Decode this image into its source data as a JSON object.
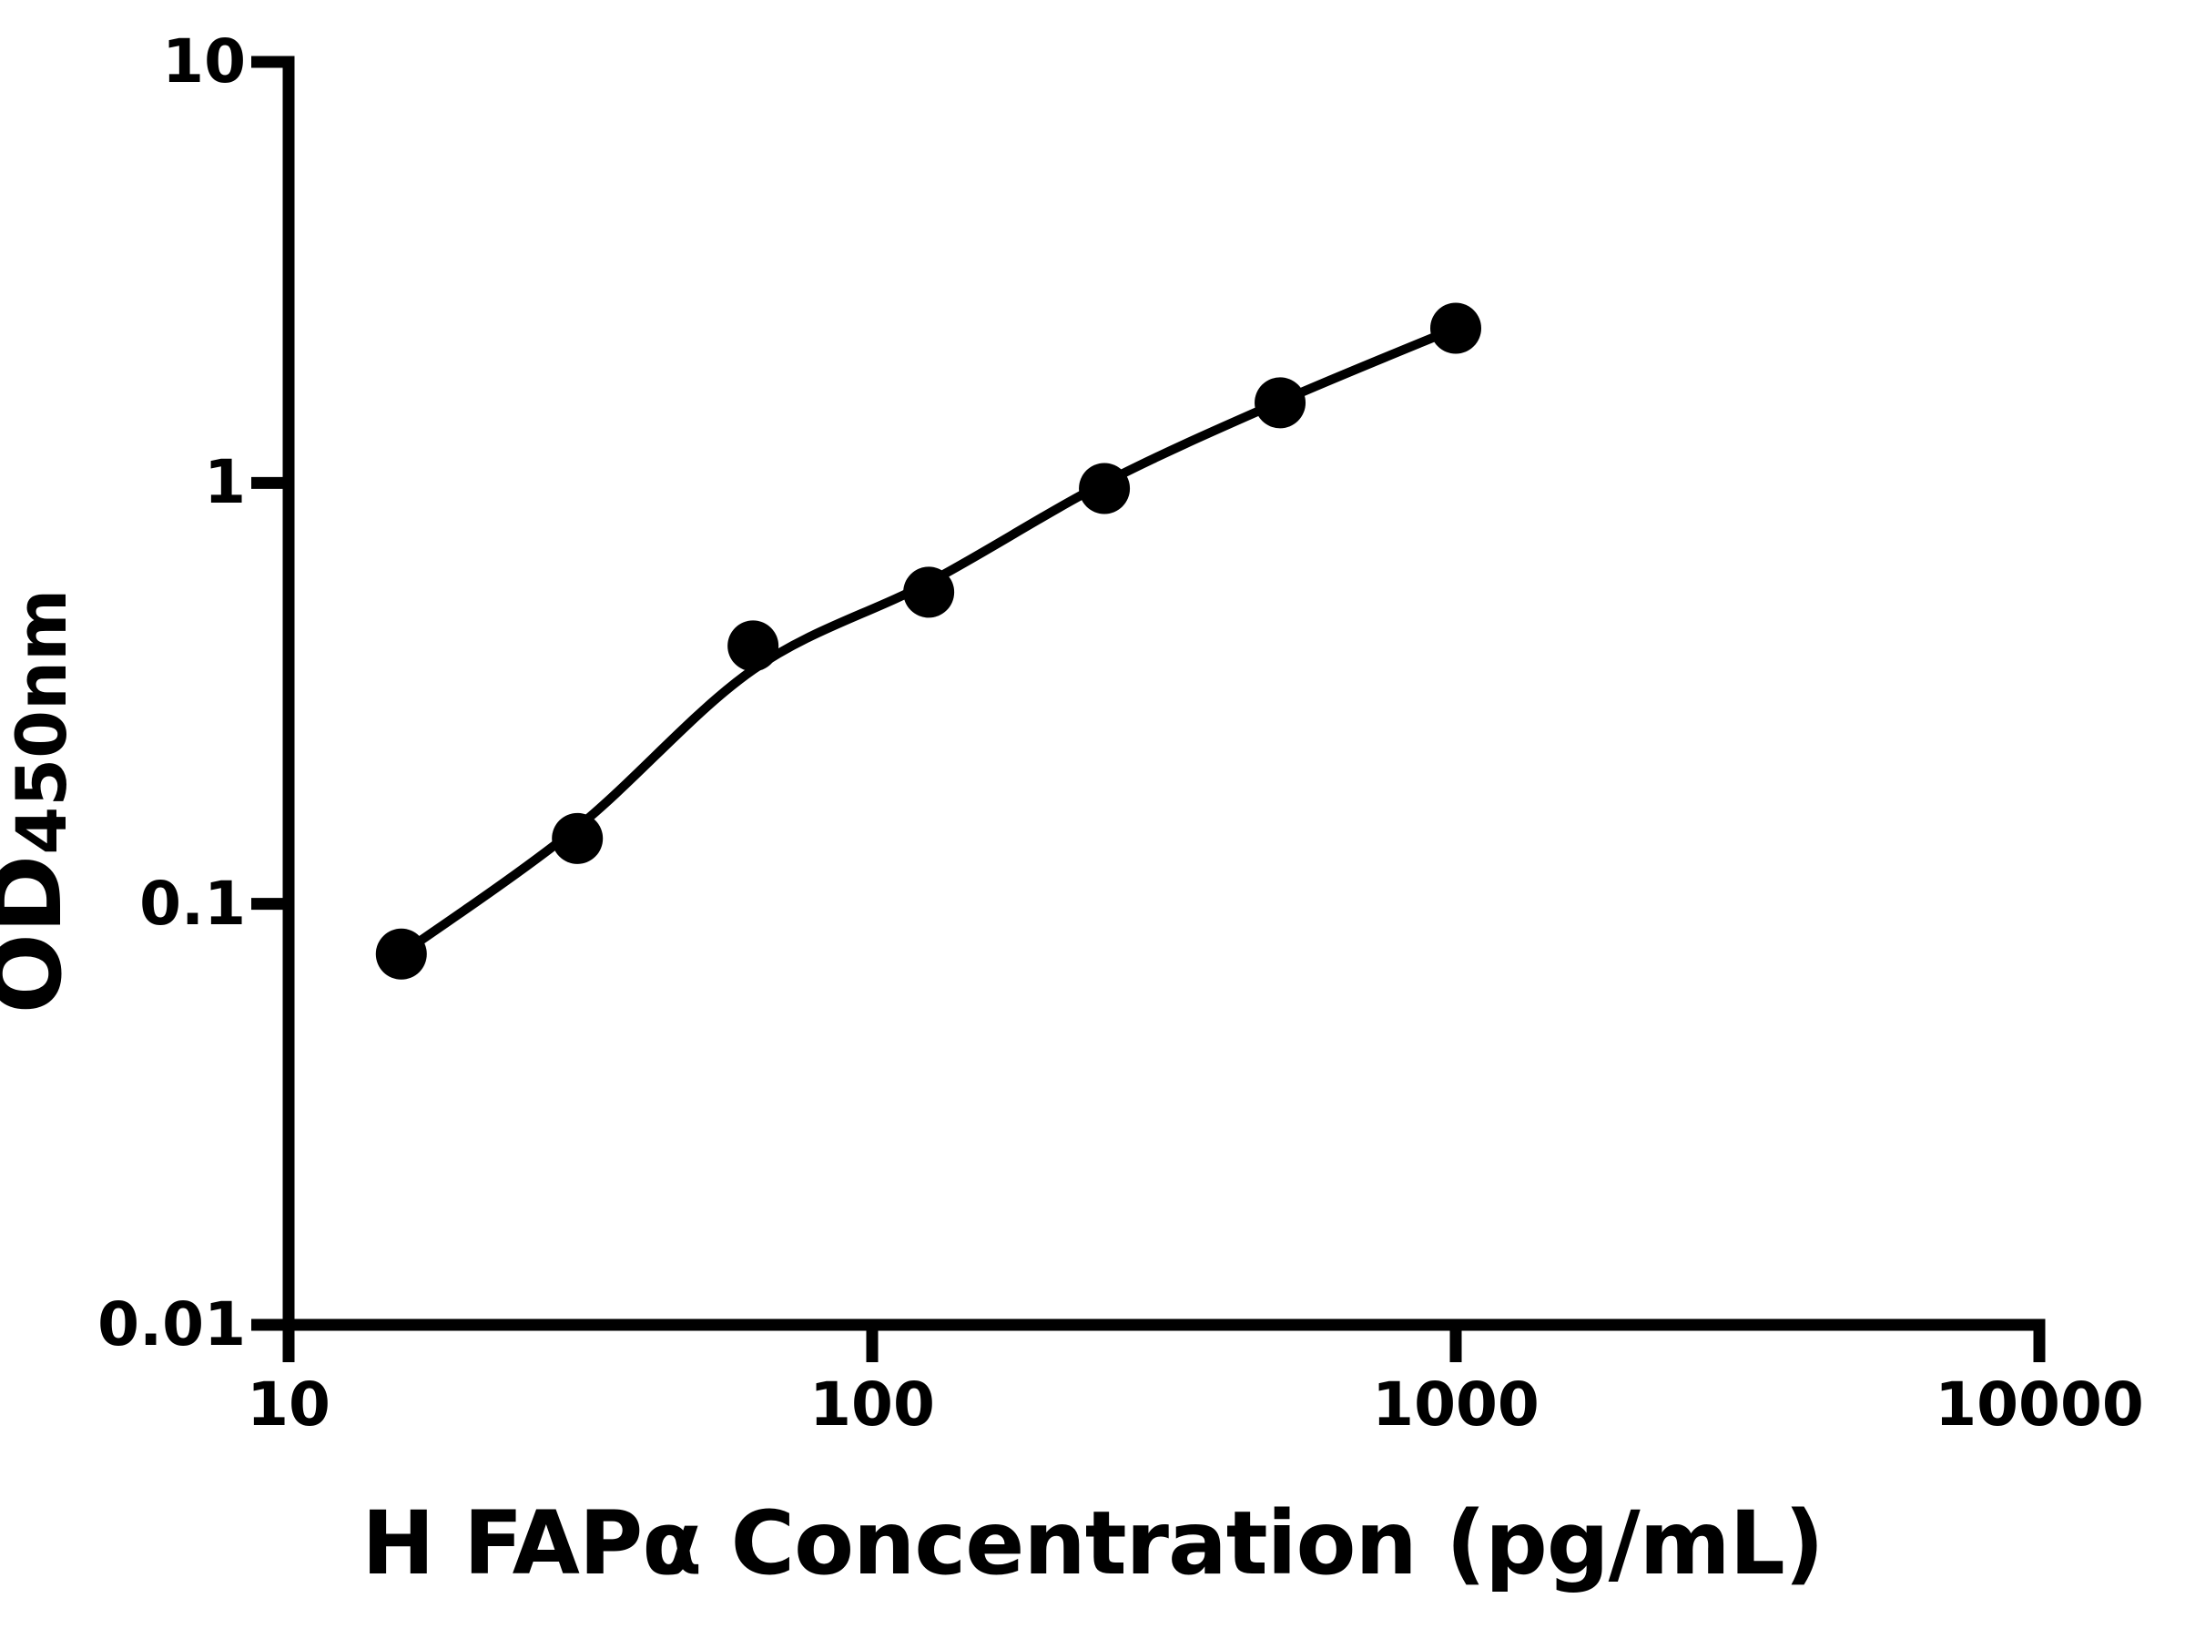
{
  "figure_background": "#ffffff",
  "foreground_color": "#000000",
  "chart_data": {
    "type": "scatter",
    "title": "",
    "xlabel": "H FAPα Concentration (pg/mL)",
    "ylabel": "OD450nm",
    "ylabel_main": "OD",
    "ylabel_sub": "450nm",
    "x_scale": "log",
    "y_scale": "log",
    "xlim": [
      10,
      10000
    ],
    "ylim": [
      0.01,
      10
    ],
    "x_ticks": [
      10,
      100,
      1000,
      10000
    ],
    "x_tick_labels": [
      "10",
      "100",
      "1000",
      "10000"
    ],
    "y_ticks": [
      10,
      1,
      0.1,
      0.01
    ],
    "y_tick_labels": [
      "10",
      "1",
      "0.1",
      "0.01"
    ],
    "grid": false,
    "legend": "none",
    "marker_color": "#000000",
    "line_color": "#000000",
    "series": [
      {
        "name": "standard-curve-points",
        "marker": "circle",
        "points": [
          [
            15.6,
            0.076
          ],
          [
            31.25,
            0.143
          ],
          [
            62.5,
            0.41
          ],
          [
            125,
            0.55
          ],
          [
            250,
            0.97
          ],
          [
            500,
            1.55
          ],
          [
            1000,
            2.33
          ]
        ]
      }
    ],
    "fit_curve": [
      [
        15.6,
        0.076
      ],
      [
        31.25,
        0.152
      ],
      [
        62.5,
        0.36
      ],
      [
        125,
        0.58
      ],
      [
        250,
        1.0
      ],
      [
        500,
        1.56
      ],
      [
        1000,
        2.33
      ]
    ]
  }
}
